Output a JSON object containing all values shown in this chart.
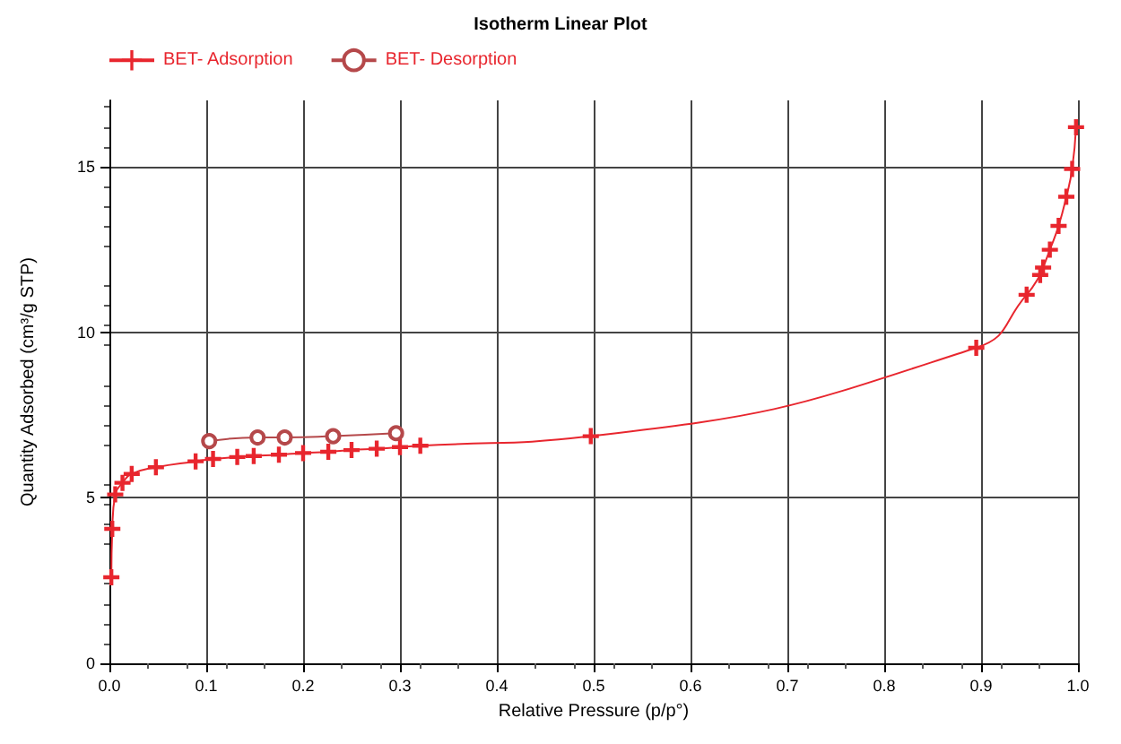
{
  "chart_data": {
    "type": "line",
    "title": "Isotherm Linear Plot",
    "xlabel": "Relative Pressure (p/p°)",
    "ylabel": "Quantity Adsorbed (cm³/g STP)",
    "xlim": [
      0,
      1
    ],
    "xticks": [
      {
        "value": 0,
        "label": "0.0"
      },
      0.1,
      0.2,
      0.3,
      0.4,
      0.5,
      0.6,
      0.7,
      0.8,
      0.9,
      {
        "value": 1,
        "label": "1.0"
      }
    ],
    "ylim": [
      0,
      17
    ],
    "yticks": [
      0,
      5,
      10,
      15
    ],
    "grid": true,
    "legend": "top left",
    "series": [
      {
        "name": "BET- Adsorption",
        "color": "#e8262e",
        "marker": "cross",
        "x": [
          0.002,
          0.003,
          0.006,
          0.0135,
          0.023,
          0.048,
          0.089,
          0.107,
          0.132,
          0.149,
          0.175,
          0.2,
          0.226,
          0.25,
          0.276,
          0.3,
          0.321,
          0.497,
          0.895,
          0.947,
          0.961,
          0.964,
          0.971,
          0.98,
          0.988,
          0.994,
          0.998
        ],
        "values": [
          2.6,
          4.06,
          5.1,
          5.45,
          5.72,
          5.92,
          6.1,
          6.17,
          6.23,
          6.26,
          6.3,
          6.35,
          6.39,
          6.44,
          6.48,
          6.53,
          6.57,
          6.86,
          9.53,
          11.13,
          11.73,
          11.95,
          12.49,
          13.21,
          14.09,
          14.93,
          16.19
        ]
      },
      {
        "name": "BET- Desorption",
        "color": "#b5484a",
        "marker": "circle",
        "x": [
          0.103,
          0.153,
          0.181,
          0.231,
          0.296
        ],
        "values": [
          6.71,
          6.82,
          6.82,
          6.86,
          6.95
        ]
      }
    ]
  }
}
